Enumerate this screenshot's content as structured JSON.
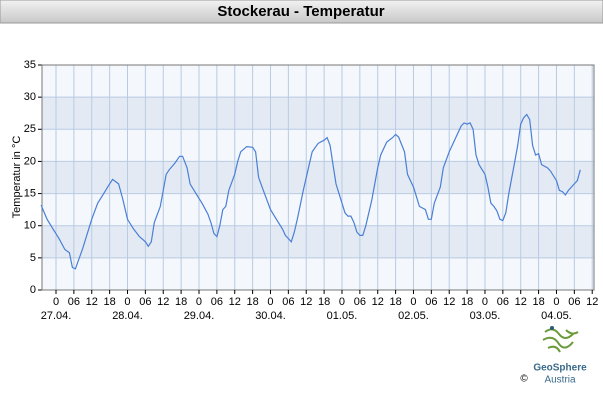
{
  "chart_data": {
    "type": "line",
    "title": "Stockerau - Temperatur",
    "y_label": "Temperatur in °C",
    "color": "#4a7fd6",
    "x": [
      -5,
      -3,
      -1,
      1,
      3,
      4.5,
      5.5,
      6.5,
      9,
      12,
      14,
      16,
      18,
      19,
      21,
      22.5,
      24,
      26,
      28,
      30,
      31,
      32,
      33,
      35,
      37,
      38,
      40,
      41.5,
      42.5,
      44,
      45,
      47,
      49,
      51,
      52,
      53,
      54,
      55,
      56,
      57,
      58,
      60,
      61,
      62,
      64,
      66,
      67,
      68,
      70,
      72,
      74,
      76,
      77,
      78,
      79,
      80,
      81,
      83,
      85,
      86,
      88,
      90,
      91,
      92,
      93,
      94,
      96,
      97,
      98,
      99,
      100,
      101,
      102,
      103,
      104,
      106,
      108,
      109,
      111,
      113,
      114,
      115,
      117,
      118,
      119,
      120,
      121,
      122,
      124,
      125,
      126,
      127,
      129,
      130,
      132,
      134,
      136,
      137,
      138,
      139,
      140,
      141,
      142,
      144,
      145,
      146,
      147,
      148,
      149,
      150,
      151,
      152,
      154,
      155,
      156,
      157,
      158,
      159,
      160,
      161,
      162,
      163,
      165,
      166,
      168,
      169,
      170,
      171,
      172,
      174,
      175,
      176
    ],
    "values": [
      13.2,
      11,
      9.5,
      8,
      6.3,
      5.8,
      3.5,
      3.3,
      6.5,
      11,
      13.5,
      15,
      16.5,
      17.2,
      16.5,
      14,
      11,
      9.5,
      8.3,
      7.5,
      6.8,
      7.5,
      10.5,
      13,
      18,
      18.7,
      19.8,
      20.8,
      20.8,
      19,
      16.5,
      15,
      13.5,
      11.8,
      10.5,
      8.8,
      8.3,
      10,
      12.5,
      13,
      15.5,
      18,
      20,
      21.5,
      22.3,
      22.2,
      21.5,
      17.5,
      15,
      12.5,
      11,
      9.5,
      8.5,
      8,
      7.5,
      9,
      11,
      15.5,
      19.5,
      21.5,
      22.8,
      23.3,
      23.7,
      22.5,
      19.5,
      16.5,
      13.5,
      12,
      11.5,
      11.5,
      10.5,
      9,
      8.5,
      8.5,
      10,
      14,
      19,
      21,
      23,
      23.7,
      24.2,
      23.8,
      21.5,
      18,
      17,
      16,
      14.5,
      13,
      12.5,
      11,
      11,
      13.5,
      16,
      19,
      21.5,
      23.5,
      25.5,
      26,
      25.8,
      26,
      25,
      21,
      19.5,
      18,
      16,
      13.5,
      13,
      12.3,
      11,
      10.8,
      12,
      15,
      20,
      22.5,
      25.8,
      26.8,
      27.3,
      26.5,
      22.5,
      21,
      21.2,
      19.5,
      19,
      18.5,
      17,
      15.5,
      15.3,
      14.8,
      15.5,
      16.5,
      17,
      18.7
    ],
    "xlim": [
      -4.7,
      180.6
    ],
    "xticks": [
      0,
      {
        "value": 6,
        "label": "06"
      },
      12,
      18,
      {
        "value": 24,
        "label": "0"
      },
      {
        "value": 30,
        "label": "06"
      },
      {
        "value": 36,
        "label": "12"
      },
      {
        "value": 42,
        "label": "18"
      },
      {
        "value": 48,
        "label": "0"
      },
      {
        "value": 54,
        "label": "06"
      },
      {
        "value": 60,
        "label": "12"
      },
      {
        "value": 66,
        "label": "18"
      },
      {
        "value": 72,
        "label": "0"
      },
      {
        "value": 78,
        "label": "06"
      },
      {
        "value": 84,
        "label": "12"
      },
      {
        "value": 90,
        "label": "18"
      },
      {
        "value": 96,
        "label": "0"
      },
      {
        "value": 102,
        "label": "06"
      },
      {
        "value": 108,
        "label": "12"
      },
      {
        "value": 114,
        "label": "18"
      },
      {
        "value": 120,
        "label": "0"
      },
      {
        "value": 126,
        "label": "06"
      },
      {
        "value": 132,
        "label": "12"
      },
      {
        "value": 138,
        "label": "18"
      },
      {
        "value": 144,
        "label": "0"
      },
      {
        "value": 150,
        "label": "06"
      },
      {
        "value": 156,
        "label": "12"
      },
      {
        "value": 162,
        "label": "18"
      },
      {
        "value": 168,
        "label": "0"
      },
      {
        "value": 174,
        "label": "06"
      },
      {
        "value": 180,
        "label": "12"
      }
    ],
    "date_labels": [
      {
        "value": 0,
        "label": "27.04."
      },
      {
        "value": 24,
        "label": "28.04."
      },
      {
        "value": 48,
        "label": "29.04."
      },
      {
        "value": 72,
        "label": "30.04."
      },
      {
        "value": 96,
        "label": "01.05."
      },
      {
        "value": 120,
        "label": "02.05."
      },
      {
        "value": 144,
        "label": "03.05."
      },
      {
        "value": 168,
        "label": "04.05."
      }
    ],
    "ylim": [
      0,
      35
    ],
    "yticks": [
      0,
      5,
      10,
      15,
      20,
      25,
      30,
      35
    ],
    "grid": true
  },
  "logo": {
    "name": "GeoSphere",
    "sub": "Austria",
    "copyright": "©"
  }
}
